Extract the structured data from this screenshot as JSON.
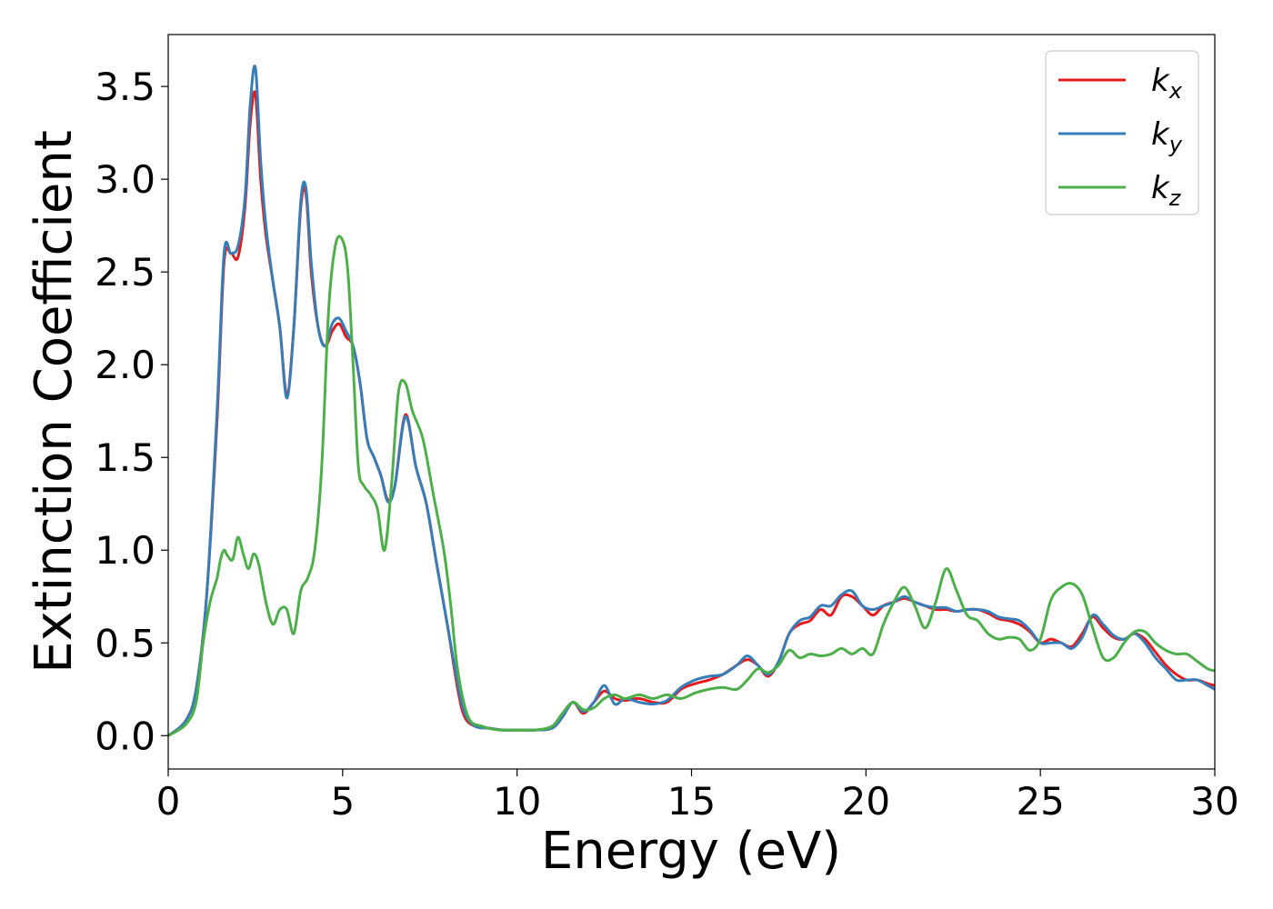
{
  "chart_data": {
    "type": "line",
    "title": "",
    "xlabel": "Energy (eV)",
    "ylabel": "Extinction Coefficient",
    "xlim": [
      0,
      30
    ],
    "ylim": [
      -0.18,
      3.78
    ],
    "xticks": [
      0,
      5,
      10,
      15,
      20,
      25,
      30
    ],
    "xtick_labels": [
      "0",
      "5",
      "10",
      "15",
      "20",
      "25",
      "30"
    ],
    "yticks": [
      0.0,
      0.5,
      1.0,
      1.5,
      2.0,
      2.5,
      3.0,
      3.5
    ],
    "ytick_labels": [
      "0.0",
      "0.5",
      "1.0",
      "1.5",
      "2.0",
      "2.5",
      "3.0",
      "3.5"
    ],
    "grid": false,
    "legend_position": "top-right",
    "series": [
      {
        "name": "k",
        "name_subscript": "x",
        "color": "#e41a1c",
        "x": [
          0,
          0.5,
          0.8,
          1.1,
          1.4,
          1.6,
          1.8,
          2.0,
          2.2,
          2.35,
          2.5,
          2.65,
          2.8,
          3.0,
          3.2,
          3.4,
          3.6,
          3.8,
          3.95,
          4.1,
          4.3,
          4.5,
          4.7,
          4.9,
          5.1,
          5.3,
          5.5,
          5.7,
          5.9,
          6.1,
          6.3,
          6.5,
          6.8,
          7.1,
          7.4,
          7.7,
          8.0,
          8.3,
          8.5,
          8.8,
          9.2,
          9.6,
          10.0,
          10.5,
          11.0,
          11.3,
          11.6,
          11.9,
          12.2,
          12.5,
          12.8,
          13.1,
          13.5,
          13.9,
          14.3,
          14.7,
          15.1,
          15.5,
          15.9,
          16.3,
          16.6,
          16.9,
          17.2,
          17.5,
          17.8,
          18.1,
          18.4,
          18.7,
          19.0,
          19.3,
          19.6,
          19.9,
          20.2,
          20.5,
          20.8,
          21.1,
          21.4,
          21.7,
          22.0,
          22.3,
          22.6,
          22.9,
          23.2,
          23.5,
          23.8,
          24.1,
          24.4,
          24.7,
          25.0,
          25.3,
          25.6,
          25.9,
          26.2,
          26.5,
          26.8,
          27.1,
          27.4,
          27.7,
          28.0,
          28.3,
          28.6,
          28.9,
          29.2,
          29.5,
          29.8,
          30.0
        ],
        "y": [
          0.0,
          0.08,
          0.25,
          0.75,
          1.7,
          2.55,
          2.6,
          2.58,
          2.85,
          3.3,
          3.46,
          3.0,
          2.7,
          2.45,
          2.2,
          1.84,
          2.2,
          2.85,
          2.92,
          2.5,
          2.2,
          2.1,
          2.18,
          2.22,
          2.15,
          2.1,
          1.9,
          1.6,
          1.5,
          1.4,
          1.27,
          1.35,
          1.73,
          1.45,
          1.25,
          0.92,
          0.6,
          0.25,
          0.1,
          0.05,
          0.04,
          0.03,
          0.03,
          0.03,
          0.04,
          0.1,
          0.18,
          0.12,
          0.18,
          0.24,
          0.2,
          0.19,
          0.2,
          0.18,
          0.18,
          0.25,
          0.28,
          0.3,
          0.33,
          0.38,
          0.41,
          0.38,
          0.32,
          0.4,
          0.55,
          0.6,
          0.62,
          0.68,
          0.65,
          0.75,
          0.75,
          0.7,
          0.65,
          0.7,
          0.72,
          0.74,
          0.72,
          0.7,
          0.68,
          0.68,
          0.67,
          0.68,
          0.68,
          0.66,
          0.63,
          0.62,
          0.6,
          0.56,
          0.5,
          0.52,
          0.5,
          0.48,
          0.55,
          0.64,
          0.58,
          0.53,
          0.52,
          0.55,
          0.52,
          0.45,
          0.38,
          0.33,
          0.3,
          0.3,
          0.28,
          0.27
        ]
      },
      {
        "name": "k",
        "name_subscript": "y",
        "color": "#377eb8",
        "x": [
          0,
          0.5,
          0.8,
          1.1,
          1.4,
          1.6,
          1.8,
          2.0,
          2.2,
          2.35,
          2.5,
          2.65,
          2.8,
          3.0,
          3.2,
          3.4,
          3.6,
          3.8,
          3.95,
          4.1,
          4.3,
          4.5,
          4.7,
          4.9,
          5.1,
          5.3,
          5.5,
          5.7,
          5.9,
          6.1,
          6.3,
          6.5,
          6.8,
          7.1,
          7.4,
          7.7,
          8.0,
          8.3,
          8.5,
          8.8,
          9.2,
          9.6,
          10.0,
          10.5,
          11.0,
          11.3,
          11.6,
          11.9,
          12.2,
          12.5,
          12.8,
          13.1,
          13.5,
          13.9,
          14.3,
          14.7,
          15.1,
          15.5,
          15.9,
          16.3,
          16.6,
          16.9,
          17.2,
          17.5,
          17.8,
          18.1,
          18.4,
          18.7,
          19.0,
          19.3,
          19.6,
          19.9,
          20.2,
          20.5,
          20.8,
          21.1,
          21.4,
          21.7,
          22.0,
          22.3,
          22.6,
          22.9,
          23.2,
          23.5,
          23.8,
          24.1,
          24.4,
          24.7,
          25.0,
          25.3,
          25.6,
          25.9,
          26.2,
          26.5,
          26.8,
          27.1,
          27.4,
          27.7,
          28.0,
          28.3,
          28.6,
          28.9,
          29.2,
          29.5,
          29.8,
          30.0
        ],
        "y": [
          0.0,
          0.08,
          0.25,
          0.75,
          1.75,
          2.6,
          2.6,
          2.64,
          2.9,
          3.4,
          3.6,
          3.1,
          2.75,
          2.45,
          2.2,
          1.82,
          2.2,
          2.88,
          2.95,
          2.55,
          2.2,
          2.1,
          2.22,
          2.25,
          2.18,
          2.1,
          1.9,
          1.6,
          1.5,
          1.4,
          1.26,
          1.35,
          1.72,
          1.45,
          1.25,
          0.92,
          0.6,
          0.28,
          0.12,
          0.05,
          0.04,
          0.03,
          0.03,
          0.03,
          0.04,
          0.1,
          0.18,
          0.13,
          0.18,
          0.27,
          0.17,
          0.2,
          0.18,
          0.17,
          0.19,
          0.26,
          0.3,
          0.32,
          0.33,
          0.38,
          0.43,
          0.38,
          0.33,
          0.4,
          0.55,
          0.62,
          0.64,
          0.7,
          0.7,
          0.76,
          0.78,
          0.7,
          0.68,
          0.7,
          0.72,
          0.75,
          0.72,
          0.7,
          0.69,
          0.69,
          0.67,
          0.68,
          0.68,
          0.67,
          0.64,
          0.63,
          0.62,
          0.57,
          0.5,
          0.5,
          0.5,
          0.47,
          0.53,
          0.65,
          0.6,
          0.54,
          0.52,
          0.55,
          0.5,
          0.42,
          0.36,
          0.3,
          0.3,
          0.3,
          0.27,
          0.25
        ]
      },
      {
        "name": "k",
        "name_subscript": "z",
        "color": "#4daf4a",
        "x": [
          0,
          0.5,
          0.8,
          1.0,
          1.2,
          1.4,
          1.5,
          1.6,
          1.7,
          1.85,
          2.0,
          2.15,
          2.3,
          2.45,
          2.6,
          2.8,
          3.0,
          3.2,
          3.4,
          3.6,
          3.8,
          4.0,
          4.2,
          4.4,
          4.6,
          4.8,
          5.0,
          5.15,
          5.3,
          5.45,
          5.6,
          5.8,
          6.0,
          6.2,
          6.4,
          6.6,
          6.8,
          7.0,
          7.3,
          7.6,
          7.9,
          8.1,
          8.3,
          8.6,
          9.0,
          9.5,
          10.0,
          10.5,
          11.0,
          11.3,
          11.6,
          11.9,
          12.2,
          12.5,
          12.8,
          13.1,
          13.5,
          13.9,
          14.3,
          14.7,
          15.1,
          15.5,
          15.9,
          16.3,
          16.6,
          16.9,
          17.2,
          17.5,
          17.8,
          18.1,
          18.4,
          18.7,
          19.0,
          19.3,
          19.6,
          19.9,
          20.2,
          20.5,
          20.8,
          21.1,
          21.4,
          21.7,
          22.0,
          22.3,
          22.6,
          22.9,
          23.2,
          23.5,
          23.8,
          24.1,
          24.4,
          24.7,
          25.0,
          25.3,
          25.6,
          25.9,
          26.2,
          26.5,
          26.8,
          27.1,
          27.4,
          27.7,
          28.0,
          28.3,
          28.6,
          28.9,
          29.2,
          29.5,
          29.8,
          30.0
        ],
        "y": [
          0.0,
          0.06,
          0.18,
          0.5,
          0.72,
          0.85,
          0.95,
          1.0,
          0.97,
          0.95,
          1.07,
          0.98,
          0.9,
          0.98,
          0.92,
          0.72,
          0.6,
          0.68,
          0.68,
          0.55,
          0.78,
          0.85,
          1.0,
          1.45,
          2.3,
          2.65,
          2.67,
          2.5,
          2.0,
          1.45,
          1.35,
          1.3,
          1.22,
          1.0,
          1.35,
          1.85,
          1.9,
          1.75,
          1.6,
          1.3,
          1.0,
          0.7,
          0.35,
          0.1,
          0.05,
          0.03,
          0.03,
          0.03,
          0.05,
          0.12,
          0.18,
          0.14,
          0.15,
          0.2,
          0.22,
          0.2,
          0.22,
          0.2,
          0.22,
          0.2,
          0.23,
          0.25,
          0.26,
          0.25,
          0.3,
          0.36,
          0.34,
          0.38,
          0.46,
          0.42,
          0.44,
          0.43,
          0.44,
          0.47,
          0.44,
          0.47,
          0.44,
          0.6,
          0.72,
          0.8,
          0.7,
          0.58,
          0.72,
          0.9,
          0.78,
          0.65,
          0.62,
          0.55,
          0.52,
          0.53,
          0.52,
          0.46,
          0.52,
          0.73,
          0.8,
          0.82,
          0.76,
          0.58,
          0.42,
          0.42,
          0.5,
          0.56,
          0.56,
          0.5,
          0.46,
          0.44,
          0.44,
          0.4,
          0.36,
          0.35
        ]
      }
    ]
  }
}
